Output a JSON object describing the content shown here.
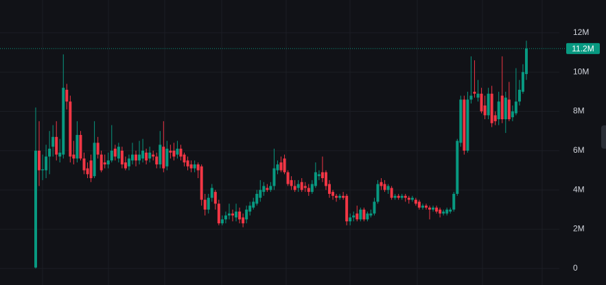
{
  "chart_data": {
    "type": "candlestick",
    "up_color": "#089981",
    "down_color": "#f23645",
    "ylim": [
      -0.84,
      13.67
    ],
    "yticks": [
      {
        "value": 0,
        "label": "0"
      },
      {
        "value": 2,
        "label": "2M"
      },
      {
        "value": 4,
        "label": "4M"
      },
      {
        "value": 6,
        "label": "6M"
      },
      {
        "value": 8,
        "label": "8M"
      },
      {
        "value": 10,
        "label": "10M"
      },
      {
        "value": 12,
        "label": "12M"
      }
    ],
    "grid": true,
    "last_price": {
      "value": 11.2,
      "label": "11.2M"
    },
    "ohlc": [
      [
        0.05,
        8.2,
        0,
        6.0
      ],
      [
        6.0,
        7.5,
        4.2,
        5.0
      ],
      [
        5.0,
        5.8,
        4.5,
        5.05
      ],
      [
        5.0,
        6.3,
        4.6,
        5.7
      ],
      [
        5.7,
        7.0,
        4.8,
        6.1
      ],
      [
        6.2,
        7.3,
        5.7,
        6.7
      ],
      [
        6.7,
        7.5,
        5.5,
        5.8
      ],
      [
        5.7,
        6.6,
        5.4,
        5.9
      ],
      [
        5.8,
        10.9,
        5.6,
        9.2
      ],
      [
        9.1,
        9.4,
        8.1,
        8.5
      ],
      [
        8.5,
        8.8,
        5.4,
        5.7
      ],
      [
        5.8,
        6.5,
        5.3,
        5.6
      ],
      [
        5.6,
        7.5,
        5.4,
        6.8
      ],
      [
        6.8,
        7.0,
        5.5,
        5.6
      ],
      [
        5.6,
        5.9,
        4.8,
        5.0
      ],
      [
        5.1,
        5.4,
        4.6,
        4.8
      ],
      [
        5.5,
        5.8,
        4.4,
        4.6
      ],
      [
        4.7,
        7.5,
        4.6,
        6.4
      ],
      [
        6.4,
        6.7,
        5.6,
        5.8
      ],
      [
        5.8,
        6.0,
        4.9,
        5.0
      ],
      [
        5.4,
        5.8,
        5.1,
        5.3
      ],
      [
        5.3,
        5.9,
        5.1,
        5.5
      ],
      [
        5.5,
        7.3,
        5.4,
        6.0
      ],
      [
        6.1,
        6.3,
        5.5,
        5.7
      ],
      [
        5.6,
        6.4,
        5.4,
        6.2
      ],
      [
        6.0,
        6.2,
        5.1,
        5.3
      ],
      [
        5.4,
        5.7,
        5.0,
        5.1
      ],
      [
        5.2,
        5.8,
        5.0,
        5.6
      ],
      [
        5.5,
        6.4,
        5.3,
        5.8
      ],
      [
        5.8,
        6.0,
        5.2,
        5.5
      ],
      [
        5.5,
        6.5,
        5.3,
        5.8
      ],
      [
        5.6,
        6.6,
        5.4,
        6.0
      ],
      [
        5.9,
        6.1,
        5.3,
        5.5
      ],
      [
        5.6,
        6.2,
        5.4,
        5.9
      ],
      [
        5.8,
        6.0,
        5.5,
        5.7
      ],
      [
        5.7,
        5.9,
        5.1,
        5.3
      ],
      [
        5.3,
        7.0,
        5.1,
        6.3
      ],
      [
        6.2,
        7.5,
        4.9,
        5.1
      ],
      [
        5.2,
        6.5,
        5.0,
        6.1
      ],
      [
        6.0,
        6.3,
        5.6,
        5.9
      ],
      [
        6.0,
        6.4,
        5.5,
        5.7
      ],
      [
        5.8,
        6.5,
        5.6,
        6.1
      ],
      [
        6.1,
        6.3,
        5.5,
        5.7
      ],
      [
        5.8,
        5.9,
        5.2,
        5.4
      ],
      [
        5.5,
        5.7,
        5.0,
        5.2
      ],
      [
        5.3,
        5.5,
        4.9,
        5.1
      ],
      [
        5.1,
        5.5,
        4.9,
        5.3
      ],
      [
        5.3,
        5.4,
        4.6,
        5.0
      ],
      [
        5.2,
        5.3,
        3.2,
        3.5
      ],
      [
        3.5,
        3.8,
        2.7,
        3.0
      ],
      [
        3.0,
        3.8,
        2.8,
        3.6
      ],
      [
        3.6,
        4.3,
        3.4,
        4.1
      ],
      [
        3.9,
        4.0,
        3.0,
        3.3
      ],
      [
        3.3,
        3.5,
        2.2,
        2.3
      ],
      [
        2.3,
        2.7,
        2.2,
        2.5
      ],
      [
        2.5,
        2.9,
        2.3,
        2.7
      ],
      [
        2.7,
        3.3,
        2.5,
        2.8
      ],
      [
        2.8,
        3.0,
        2.4,
        2.7
      ],
      [
        2.6,
        3.3,
        2.4,
        2.9
      ],
      [
        2.9,
        3.1,
        2.3,
        2.5
      ],
      [
        2.6,
        2.8,
        2.1,
        2.3
      ],
      [
        2.5,
        3.2,
        2.3,
        3.0
      ],
      [
        2.9,
        3.4,
        2.7,
        3.2
      ],
      [
        3.1,
        3.6,
        3.0,
        3.4
      ],
      [
        3.3,
        4.0,
        3.2,
        3.8
      ],
      [
        3.6,
        4.5,
        3.4,
        4.0
      ],
      [
        3.9,
        4.4,
        3.7,
        4.2
      ],
      [
        4.1,
        4.3,
        3.9,
        4.0
      ],
      [
        4.0,
        4.4,
        3.9,
        4.2
      ],
      [
        4.2,
        6.1,
        4.0,
        5.1
      ],
      [
        5.0,
        5.5,
        4.8,
        5.3
      ],
      [
        5.4,
        5.7,
        4.9,
        5.0
      ],
      [
        5.6,
        5.8,
        4.8,
        4.9
      ],
      [
        4.9,
        5.0,
        4.2,
        4.3
      ],
      [
        4.5,
        4.7,
        4.0,
        4.2
      ],
      [
        4.2,
        4.5,
        3.9,
        4.0
      ],
      [
        4.1,
        4.5,
        3.9,
        4.3
      ],
      [
        4.4,
        4.6,
        3.9,
        4.0
      ],
      [
        4.2,
        4.4,
        3.9,
        4.1
      ],
      [
        4.1,
        4.3,
        3.7,
        3.9
      ],
      [
        3.9,
        4.5,
        3.8,
        4.3
      ],
      [
        4.2,
        5.4,
        4.1,
        4.9
      ],
      [
        4.7,
        5.0,
        4.5,
        4.8
      ],
      [
        4.9,
        5.7,
        4.4,
        4.6
      ],
      [
        4.9,
        5.0,
        4.0,
        4.2
      ],
      [
        4.3,
        4.5,
        3.6,
        3.8
      ],
      [
        3.9,
        4.0,
        3.5,
        3.7
      ],
      [
        3.7,
        3.8,
        3.4,
        3.6
      ],
      [
        3.6,
        3.8,
        3.5,
        3.7
      ],
      [
        3.7,
        3.9,
        3.5,
        3.6
      ],
      [
        3.7,
        3.8,
        2.2,
        2.4
      ],
      [
        2.4,
        2.8,
        2.2,
        2.6
      ],
      [
        2.6,
        2.9,
        2.4,
        2.7
      ],
      [
        2.8,
        3.2,
        2.4,
        2.5
      ],
      [
        2.5,
        3.1,
        2.4,
        3.0
      ],
      [
        3.0,
        3.1,
        2.4,
        2.5
      ],
      [
        2.5,
        2.9,
        2.4,
        2.8
      ],
      [
        2.7,
        3.0,
        2.6,
        2.8
      ],
      [
        2.8,
        3.6,
        2.7,
        3.4
      ],
      [
        3.4,
        4.5,
        3.3,
        4.3
      ],
      [
        4.4,
        4.6,
        4.0,
        4.2
      ],
      [
        4.3,
        4.5,
        3.9,
        4.0
      ],
      [
        4.0,
        4.3,
        3.8,
        4.2
      ],
      [
        4.1,
        4.2,
        3.5,
        3.6
      ],
      [
        3.6,
        3.8,
        3.5,
        3.7
      ],
      [
        3.7,
        3.8,
        3.5,
        3.6
      ],
      [
        3.6,
        3.8,
        3.5,
        3.7
      ],
      [
        3.7,
        3.8,
        3.4,
        3.6
      ],
      [
        3.6,
        3.7,
        3.3,
        3.5
      ],
      [
        3.5,
        3.7,
        3.4,
        3.6
      ],
      [
        3.5,
        3.6,
        3.2,
        3.3
      ],
      [
        3.4,
        3.5,
        3.0,
        3.1
      ],
      [
        3.1,
        3.3,
        3.0,
        3.2
      ],
      [
        3.2,
        3.3,
        3.0,
        3.1
      ],
      [
        3.1,
        3.2,
        2.5,
        3.0
      ],
      [
        3.0,
        3.2,
        2.9,
        3.1
      ],
      [
        3.1,
        3.2,
        2.8,
        2.9
      ],
      [
        3.0,
        3.1,
        2.6,
        2.8
      ],
      [
        2.8,
        3.0,
        2.7,
        2.9
      ],
      [
        2.8,
        3.1,
        2.7,
        3.0
      ],
      [
        2.9,
        3.1,
        2.8,
        3.0
      ],
      [
        3.0,
        3.9,
        2.9,
        3.8
      ],
      [
        3.8,
        6.6,
        3.7,
        6.5
      ],
      [
        6.4,
        8.8,
        6.2,
        8.6
      ],
      [
        8.6,
        8.8,
        5.8,
        6.0
      ],
      [
        6.0,
        9.0,
        5.9,
        8.6
      ],
      [
        8.6,
        10.8,
        8.4,
        8.8
      ],
      [
        9.0,
        10.6,
        8.7,
        8.9
      ],
      [
        8.7,
        9.6,
        8.5,
        8.9
      ],
      [
        8.9,
        9.2,
        7.9,
        8.0
      ],
      [
        8.3,
        8.8,
        7.6,
        7.8
      ],
      [
        7.8,
        9.2,
        7.6,
        8.9
      ],
      [
        8.9,
        9.3,
        7.2,
        7.4
      ],
      [
        7.8,
        8.0,
        7.3,
        7.5
      ],
      [
        7.6,
        9.0,
        7.3,
        8.5
      ],
      [
        8.8,
        10.8,
        7.4,
        7.6
      ],
      [
        7.6,
        9.0,
        6.9,
        8.7
      ],
      [
        8.6,
        9.5,
        7.5,
        7.6
      ],
      [
        7.7,
        8.3,
        7.5,
        8.0
      ],
      [
        7.9,
        10.2,
        7.8,
        8.5
      ],
      [
        8.5,
        9.6,
        8.3,
        9.1
      ],
      [
        9.0,
        10.4,
        8.9,
        10.0
      ],
      [
        9.9,
        11.6,
        9.6,
        11.2
      ]
    ]
  }
}
